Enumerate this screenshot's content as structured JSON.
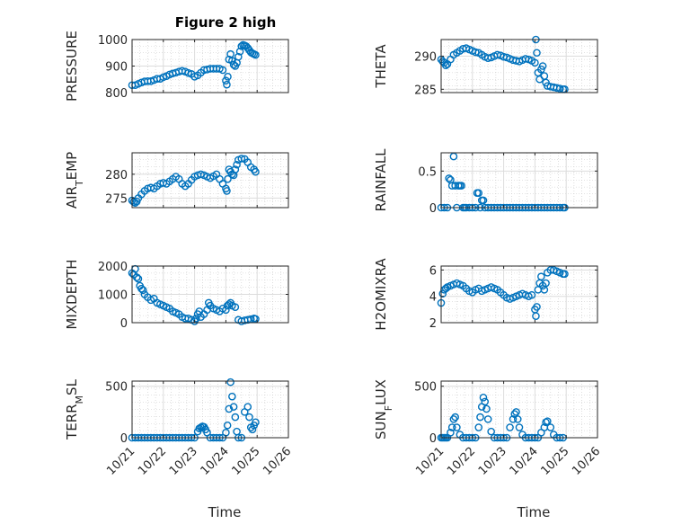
{
  "figure_title": "Figure 2 high",
  "marker_color": "#0072bd",
  "chart_data": [
    {
      "type": "scatter",
      "marker": "circle-open",
      "title": "Figure 2 high",
      "ylabel": "PRESSURE",
      "ylabel_sub": "",
      "ylabel_post": "",
      "xlabel": "",
      "xlim": [
        21,
        26
      ],
      "ylim": [
        800,
        1000
      ],
      "yticks": [
        800,
        900,
        1000
      ],
      "yticklabels": [
        "800",
        "900",
        "1000"
      ],
      "xticklabels": [],
      "grid": true,
      "minor_grid": true,
      "x": [
        21.0,
        21.1,
        21.2,
        21.3,
        21.4,
        21.5,
        21.6,
        21.7,
        21.8,
        21.9,
        22.0,
        22.1,
        22.2,
        22.3,
        22.4,
        22.5,
        22.6,
        22.7,
        22.8,
        22.9,
        23.0,
        23.1,
        23.2,
        23.3,
        23.4,
        23.5,
        23.6,
        23.7,
        23.8,
        23.9,
        24.0,
        24.03,
        24.06,
        24.1,
        24.15,
        24.2,
        24.25,
        24.3,
        24.35,
        24.4,
        24.45,
        24.5,
        24.55,
        24.6,
        24.65,
        24.7,
        24.75,
        24.8,
        24.85,
        24.9,
        24.95
      ],
      "y": [
        828,
        828,
        833,
        838,
        842,
        843,
        843,
        847,
        852,
        852,
        858,
        862,
        868,
        872,
        875,
        879,
        882,
        879,
        874,
        870,
        860,
        865,
        875,
        885,
        887,
        890,
        890,
        890,
        890,
        885,
        845,
        830,
        860,
        925,
        945,
        920,
        905,
        900,
        912,
        935,
        955,
        975,
        980,
        978,
        975,
        968,
        960,
        952,
        948,
        945,
        942
      ]
    },
    {
      "type": "scatter",
      "marker": "circle-open",
      "title": "",
      "ylabel": "THETA",
      "ylabel_sub": "",
      "ylabel_post": "",
      "xlabel": "",
      "xlim": [
        21,
        26
      ],
      "ylim": [
        284.5,
        292.5
      ],
      "yticks": [
        285,
        290
      ],
      "yticklabels": [
        "285",
        "290"
      ],
      "xticklabels": [],
      "grid": true,
      "minor_grid": true,
      "x": [
        21.0,
        21.05,
        21.1,
        21.15,
        21.2,
        21.3,
        21.4,
        21.5,
        21.6,
        21.7,
        21.8,
        21.9,
        22.0,
        22.1,
        22.2,
        22.3,
        22.4,
        22.5,
        22.6,
        22.7,
        22.8,
        22.9,
        23.0,
        23.1,
        23.2,
        23.3,
        23.4,
        23.5,
        23.6,
        23.7,
        23.8,
        23.9,
        24.0,
        24.03,
        24.06,
        24.1,
        24.15,
        24.2,
        24.25,
        24.3,
        24.35,
        24.4,
        24.5,
        24.6,
        24.7,
        24.8,
        24.9,
        24.95
      ],
      "y": [
        289.5,
        289.2,
        289.0,
        288.6,
        288.8,
        289.5,
        290.2,
        290.5,
        290.8,
        291.1,
        291.2,
        291.0,
        290.8,
        290.6,
        290.5,
        290.2,
        289.9,
        289.7,
        289.8,
        290.0,
        290.2,
        290.1,
        289.9,
        289.8,
        289.6,
        289.4,
        289.3,
        289.2,
        289.4,
        289.6,
        289.5,
        289.3,
        289.0,
        292.5,
        290.5,
        287.5,
        286.5,
        288.0,
        288.5,
        287.0,
        286.0,
        285.5,
        285.4,
        285.3,
        285.2,
        285.1,
        285.0,
        285.0
      ]
    },
    {
      "type": "scatter",
      "marker": "circle-open",
      "title": "",
      "ylabel": "AIR",
      "ylabel_sub": "T",
      "ylabel_post": "EMP",
      "xlabel": "",
      "xlim": [
        21,
        26
      ],
      "ylim": [
        273,
        284.5
      ],
      "yticks": [
        275,
        280
      ],
      "yticklabels": [
        "275",
        "280"
      ],
      "xticklabels": [],
      "grid": true,
      "minor_grid": true,
      "x": [
        21.0,
        21.05,
        21.1,
        21.15,
        21.2,
        21.3,
        21.4,
        21.5,
        21.6,
        21.7,
        21.8,
        21.9,
        22.0,
        22.1,
        22.2,
        22.3,
        22.4,
        22.5,
        22.6,
        22.7,
        22.8,
        22.9,
        23.0,
        23.1,
        23.2,
        23.3,
        23.4,
        23.5,
        23.6,
        23.7,
        23.8,
        23.9,
        24.0,
        24.03,
        24.06,
        24.1,
        24.15,
        24.2,
        24.25,
        24.3,
        24.35,
        24.4,
        24.5,
        24.6,
        24.7,
        24.8,
        24.9,
        24.95
      ],
      "y": [
        274.5,
        274.2,
        274.0,
        274.3,
        275.0,
        275.8,
        276.5,
        277.0,
        277.2,
        277.0,
        277.5,
        278.0,
        278.2,
        278.0,
        278.5,
        279.0,
        279.5,
        279.0,
        278.0,
        277.5,
        278.0,
        278.8,
        279.5,
        279.8,
        280.0,
        279.8,
        279.5,
        279.2,
        279.6,
        280.0,
        279.0,
        278.0,
        277.0,
        276.5,
        279.0,
        281.0,
        280.5,
        280.0,
        279.8,
        281.0,
        282.0,
        283.0,
        283.3,
        283.2,
        282.5,
        281.5,
        281.0,
        280.5
      ]
    },
    {
      "type": "scatter",
      "marker": "circle-open",
      "title": "",
      "ylabel": "RAINFALL",
      "ylabel_sub": "",
      "ylabel_post": "",
      "xlabel": "",
      "xlim": [
        21,
        26
      ],
      "ylim": [
        0,
        0.75
      ],
      "yticks": [
        0,
        0.5
      ],
      "yticklabels": [
        "0",
        "0.5"
      ],
      "xticklabels": [],
      "grid": true,
      "minor_grid": true,
      "x": [
        21.0,
        21.1,
        21.2,
        21.25,
        21.3,
        21.35,
        21.4,
        21.45,
        21.5,
        21.55,
        21.6,
        21.65,
        21.7,
        21.75,
        21.8,
        21.9,
        22.0,
        22.1,
        22.15,
        22.2,
        22.25,
        22.3,
        22.35,
        22.4,
        22.5,
        22.6,
        22.7,
        22.8,
        22.9,
        23.0,
        23.1,
        23.2,
        23.3,
        23.4,
        23.5,
        23.6,
        23.7,
        23.8,
        23.9,
        24.0,
        24.1,
        24.2,
        24.3,
        24.4,
        24.5,
        24.6,
        24.7,
        24.8,
        24.9,
        24.95
      ],
      "y": [
        0,
        0,
        0,
        0.4,
        0.38,
        0.3,
        0.7,
        0.3,
        0,
        0.3,
        0.3,
        0.3,
        0,
        0,
        0,
        0,
        0,
        0,
        0.2,
        0.2,
        0,
        0.1,
        0.1,
        0,
        0,
        0,
        0,
        0,
        0,
        0,
        0,
        0,
        0,
        0,
        0,
        0,
        0,
        0,
        0,
        0,
        0,
        0,
        0,
        0,
        0,
        0,
        0,
        0,
        0,
        0
      ]
    },
    {
      "type": "scatter",
      "marker": "circle-open",
      "title": "",
      "ylabel": "MIXDEPTH",
      "ylabel_sub": "",
      "ylabel_post": "",
      "xlabel": "",
      "xlim": [
        21,
        26
      ],
      "ylim": [
        0,
        2000
      ],
      "yticks": [
        0,
        1000,
        2000
      ],
      "yticklabels": [
        "0",
        "1000",
        "2000"
      ],
      "xticklabels": [],
      "grid": true,
      "minor_grid": true,
      "x": [
        21.0,
        21.05,
        21.1,
        21.15,
        21.2,
        21.25,
        21.3,
        21.35,
        21.4,
        21.5,
        21.6,
        21.7,
        21.8,
        21.9,
        22.0,
        22.1,
        22.2,
        22.3,
        22.4,
        22.5,
        22.6,
        22.7,
        22.8,
        22.9,
        23.0,
        23.05,
        23.1,
        23.15,
        23.2,
        23.3,
        23.4,
        23.45,
        23.5,
        23.6,
        23.7,
        23.8,
        23.9,
        24.0,
        24.05,
        24.1,
        24.15,
        24.2,
        24.3,
        24.4,
        24.5,
        24.6,
        24.7,
        24.8,
        24.9,
        24.95
      ],
      "y": [
        1750,
        1700,
        1900,
        1600,
        1550,
        1300,
        1200,
        1150,
        1000,
        900,
        800,
        850,
        700,
        650,
        600,
        550,
        500,
        400,
        350,
        300,
        200,
        150,
        150,
        100,
        50,
        150,
        300,
        400,
        200,
        300,
        450,
        700,
        600,
        500,
        450,
        400,
        500,
        450,
        600,
        650,
        700,
        600,
        550,
        100,
        50,
        80,
        100,
        120,
        150,
        130
      ]
    },
    {
      "type": "scatter",
      "marker": "circle-open",
      "title": "",
      "ylabel": "H2OMIXRA",
      "ylabel_sub": "",
      "ylabel_post": "",
      "xlabel": "",
      "xlim": [
        21,
        26
      ],
      "ylim": [
        2,
        6.3
      ],
      "yticks": [
        2,
        4,
        6
      ],
      "yticklabels": [
        "2",
        "4",
        "6"
      ],
      "xticklabels": [],
      "grid": true,
      "minor_grid": true,
      "x": [
        21.0,
        21.05,
        21.1,
        21.15,
        21.2,
        21.3,
        21.4,
        21.5,
        21.6,
        21.7,
        21.8,
        21.9,
        22.0,
        22.1,
        22.2,
        22.3,
        22.4,
        22.5,
        22.6,
        22.7,
        22.8,
        22.9,
        23.0,
        23.1,
        23.2,
        23.3,
        23.4,
        23.5,
        23.6,
        23.7,
        23.8,
        23.9,
        24.0,
        24.03,
        24.06,
        24.1,
        24.15,
        24.2,
        24.25,
        24.3,
        24.35,
        24.4,
        24.5,
        24.6,
        24.7,
        24.8,
        24.9,
        24.95
      ],
      "y": [
        3.5,
        4.2,
        4.5,
        4.6,
        4.7,
        4.8,
        4.9,
        5.0,
        4.9,
        4.8,
        4.6,
        4.4,
        4.3,
        4.5,
        4.6,
        4.4,
        4.5,
        4.6,
        4.7,
        4.6,
        4.5,
        4.3,
        4.1,
        3.9,
        3.8,
        3.9,
        4.0,
        4.1,
        4.2,
        4.1,
        4.0,
        4.1,
        3.0,
        2.5,
        3.2,
        4.5,
        5.0,
        5.5,
        4.8,
        4.5,
        5.0,
        5.8,
        6.0,
        6.0,
        5.9,
        5.8,
        5.7,
        5.7
      ]
    },
    {
      "type": "scatter",
      "marker": "circle-open",
      "title": "",
      "ylabel": "TERR",
      "ylabel_sub": "M",
      "ylabel_post": "SL",
      "xlabel": "Time",
      "xlim": [
        21,
        26
      ],
      "ylim": [
        0,
        550
      ],
      "yticks": [
        0,
        500
      ],
      "yticklabels": [
        "0",
        "500"
      ],
      "xticks": [
        21,
        22,
        23,
        24,
        25,
        26
      ],
      "xticklabels": [
        "10/21",
        "10/22",
        "10/23",
        "10/24",
        "10/25",
        "10/26"
      ],
      "grid": true,
      "minor_grid": true,
      "x": [
        21.0,
        21.1,
        21.2,
        21.3,
        21.4,
        21.5,
        21.6,
        21.7,
        21.8,
        21.9,
        22.0,
        22.1,
        22.2,
        22.3,
        22.4,
        22.5,
        22.6,
        22.7,
        22.8,
        22.9,
        23.0,
        23.1,
        23.15,
        23.2,
        23.25,
        23.3,
        23.35,
        23.4,
        23.5,
        23.6,
        23.7,
        23.8,
        23.9,
        24.0,
        24.05,
        24.1,
        24.15,
        24.2,
        24.25,
        24.3,
        24.35,
        24.4,
        24.5,
        24.6,
        24.7,
        24.75,
        24.8,
        24.85,
        24.9,
        24.95
      ],
      "y": [
        0,
        0,
        0,
        0,
        0,
        0,
        0,
        0,
        0,
        0,
        0,
        0,
        0,
        0,
        0,
        0,
        0,
        0,
        0,
        0,
        0,
        60,
        90,
        100,
        110,
        105,
        80,
        50,
        0,
        0,
        0,
        0,
        0,
        50,
        120,
        280,
        540,
        400,
        300,
        200,
        60,
        0,
        0,
        250,
        300,
        200,
        100,
        80,
        120,
        150
      ]
    },
    {
      "type": "scatter",
      "marker": "circle-open",
      "title": "",
      "ylabel": "SUN",
      "ylabel_sub": "F",
      "ylabel_post": "LUX",
      "xlabel": "Time",
      "xlim": [
        21,
        26
      ],
      "ylim": [
        0,
        550
      ],
      "yticks": [
        0,
        500
      ],
      "yticklabels": [
        "0",
        "500"
      ],
      "xticks": [
        21,
        22,
        23,
        24,
        25,
        26
      ],
      "xticklabels": [
        "10/21",
        "10/22",
        "10/23",
        "10/24",
        "10/25",
        "10/26"
      ],
      "grid": true,
      "minor_grid": true,
      "x": [
        21.0,
        21.05,
        21.1,
        21.15,
        21.2,
        21.3,
        21.35,
        21.4,
        21.45,
        21.5,
        21.6,
        21.7,
        21.8,
        21.9,
        22.0,
        22.1,
        22.2,
        22.25,
        22.3,
        22.35,
        22.4,
        22.45,
        22.5,
        22.6,
        22.7,
        22.8,
        22.9,
        23.0,
        23.1,
        23.2,
        23.3,
        23.35,
        23.4,
        23.45,
        23.5,
        23.6,
        23.7,
        23.8,
        23.9,
        24.0,
        24.1,
        24.2,
        24.3,
        24.35,
        24.4,
        24.5,
        24.6,
        24.7,
        24.8,
        24.9
      ],
      "y": [
        0,
        0,
        0,
        0,
        0,
        50,
        100,
        180,
        200,
        100,
        30,
        0,
        0,
        0,
        0,
        0,
        100,
        200,
        300,
        390,
        350,
        280,
        180,
        60,
        0,
        0,
        0,
        0,
        0,
        100,
        180,
        230,
        250,
        180,
        100,
        30,
        0,
        0,
        0,
        0,
        0,
        50,
        100,
        150,
        160,
        100,
        30,
        0,
        0,
        0
      ]
    }
  ]
}
